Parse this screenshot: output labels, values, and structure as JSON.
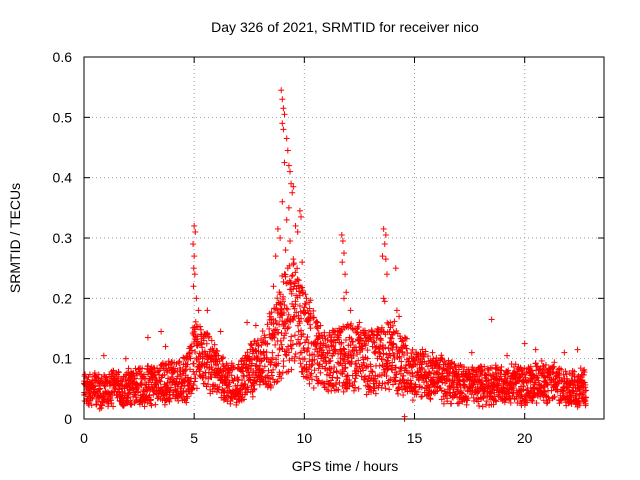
{
  "chart_data": {
    "type": "scatter",
    "title": "Day 326 of 2021, SRMTID for receiver nico",
    "xlabel": "GPS time / hours",
    "ylabel": "SRMTID / TECUs",
    "xlim": [
      0,
      23.6
    ],
    "ylim": [
      0,
      0.6
    ],
    "xticks": [
      0,
      5,
      10,
      15,
      20
    ],
    "yticks": [
      0,
      0.1,
      0.2,
      0.3,
      0.4,
      0.5,
      0.6
    ],
    "xtick_labels": [
      "0",
      "5",
      "10",
      "15",
      "20"
    ],
    "ytick_labels": [
      "0",
      "0.1",
      "0.2",
      "0.3",
      "0.4",
      "0.5",
      "0.6"
    ],
    "grid": true,
    "marker": "+",
    "series": [
      {
        "name": "SRMTID",
        "color": "#ff0000",
        "baseline": [
          [
            0.0,
            0.05
          ],
          [
            1.0,
            0.05
          ],
          [
            2.0,
            0.055
          ],
          [
            3.0,
            0.06
          ],
          [
            4.0,
            0.065
          ],
          [
            4.7,
            0.07
          ],
          [
            5.0,
            0.11
          ],
          [
            5.5,
            0.1
          ],
          [
            6.0,
            0.08
          ],
          [
            6.5,
            0.065
          ],
          [
            7.0,
            0.06
          ],
          [
            7.5,
            0.08
          ],
          [
            8.0,
            0.1
          ],
          [
            8.5,
            0.12
          ],
          [
            9.0,
            0.16
          ],
          [
            9.5,
            0.19
          ],
          [
            10.0,
            0.15
          ],
          [
            10.5,
            0.12
          ],
          [
            11.0,
            0.1
          ],
          [
            12.0,
            0.11
          ],
          [
            13.0,
            0.1
          ],
          [
            14.0,
            0.11
          ],
          [
            15.0,
            0.08
          ],
          [
            16.0,
            0.07
          ],
          [
            17.0,
            0.06
          ],
          [
            18.0,
            0.06
          ],
          [
            19.0,
            0.06
          ],
          [
            20.0,
            0.06
          ],
          [
            21.0,
            0.065
          ],
          [
            22.0,
            0.055
          ],
          [
            22.8,
            0.055
          ]
        ],
        "points": [
          [
            5.0,
            0.32
          ],
          [
            5.05,
            0.31
          ],
          [
            4.95,
            0.29
          ],
          [
            5.0,
            0.27
          ],
          [
            4.98,
            0.25
          ],
          [
            5.03,
            0.24
          ],
          [
            4.97,
            0.22
          ],
          [
            5.1,
            0.2
          ],
          [
            5.2,
            0.18
          ],
          [
            5.6,
            0.18
          ],
          [
            8.95,
            0.545
          ],
          [
            9.0,
            0.53
          ],
          [
            9.05,
            0.515
          ],
          [
            9.1,
            0.505
          ],
          [
            9.0,
            0.49
          ],
          [
            9.05,
            0.48
          ],
          [
            9.2,
            0.465
          ],
          [
            9.25,
            0.445
          ],
          [
            9.1,
            0.425
          ],
          [
            9.3,
            0.42
          ],
          [
            9.35,
            0.41
          ],
          [
            9.4,
            0.39
          ],
          [
            9.5,
            0.385
          ],
          [
            9.45,
            0.375
          ],
          [
            9.0,
            0.36
          ],
          [
            9.3,
            0.35
          ],
          [
            9.8,
            0.345
          ],
          [
            9.85,
            0.335
          ],
          [
            9.2,
            0.33
          ],
          [
            9.6,
            0.32
          ],
          [
            8.8,
            0.315
          ],
          [
            9.7,
            0.31
          ],
          [
            8.9,
            0.3
          ],
          [
            9.35,
            0.295
          ],
          [
            9.15,
            0.28
          ],
          [
            8.7,
            0.27
          ],
          [
            9.5,
            0.265
          ],
          [
            9.9,
            0.26
          ],
          [
            9.25,
            0.25
          ],
          [
            9.1,
            0.24
          ],
          [
            9.75,
            0.23
          ],
          [
            8.6,
            0.22
          ],
          [
            9.4,
            0.215
          ],
          [
            10.1,
            0.2
          ],
          [
            9.6,
            0.195
          ],
          [
            8.9,
            0.19
          ],
          [
            10.0,
            0.185
          ],
          [
            10.2,
            0.175
          ],
          [
            9.55,
            0.17
          ],
          [
            8.5,
            0.165
          ],
          [
            11.7,
            0.305
          ],
          [
            11.75,
            0.295
          ],
          [
            11.8,
            0.275
          ],
          [
            11.72,
            0.26
          ],
          [
            11.85,
            0.24
          ],
          [
            11.9,
            0.21
          ],
          [
            11.8,
            0.2
          ],
          [
            12.1,
            0.18
          ],
          [
            12.5,
            0.16
          ],
          [
            12.3,
            0.15
          ],
          [
            13.6,
            0.315
          ],
          [
            13.7,
            0.305
          ],
          [
            13.65,
            0.29
          ],
          [
            13.55,
            0.27
          ],
          [
            13.7,
            0.265
          ],
          [
            13.75,
            0.24
          ],
          [
            13.6,
            0.2
          ],
          [
            13.65,
            0.195
          ],
          [
            14.15,
            0.25
          ],
          [
            14.2,
            0.18
          ],
          [
            14.3,
            0.17
          ],
          [
            13.9,
            0.16
          ],
          [
            18.5,
            0.165
          ],
          [
            20.0,
            0.125
          ],
          [
            20.5,
            0.115
          ],
          [
            17.6,
            0.11
          ],
          [
            19.2,
            0.105
          ],
          [
            21.8,
            0.11
          ],
          [
            16.2,
            0.1
          ],
          [
            3.5,
            0.145
          ],
          [
            2.9,
            0.135
          ],
          [
            3.7,
            0.12
          ],
          [
            0.9,
            0.105
          ],
          [
            1.9,
            0.1
          ],
          [
            22.4,
            0.115
          ],
          [
            7.4,
            0.16
          ],
          [
            7.8,
            0.155
          ],
          [
            6.2,
            0.145
          ],
          [
            5.8,
            0.13
          ],
          [
            10.6,
            0.16
          ],
          [
            14.55,
            0.0
          ],
          [
            14.55,
            0.004
          ]
        ]
      }
    ]
  }
}
